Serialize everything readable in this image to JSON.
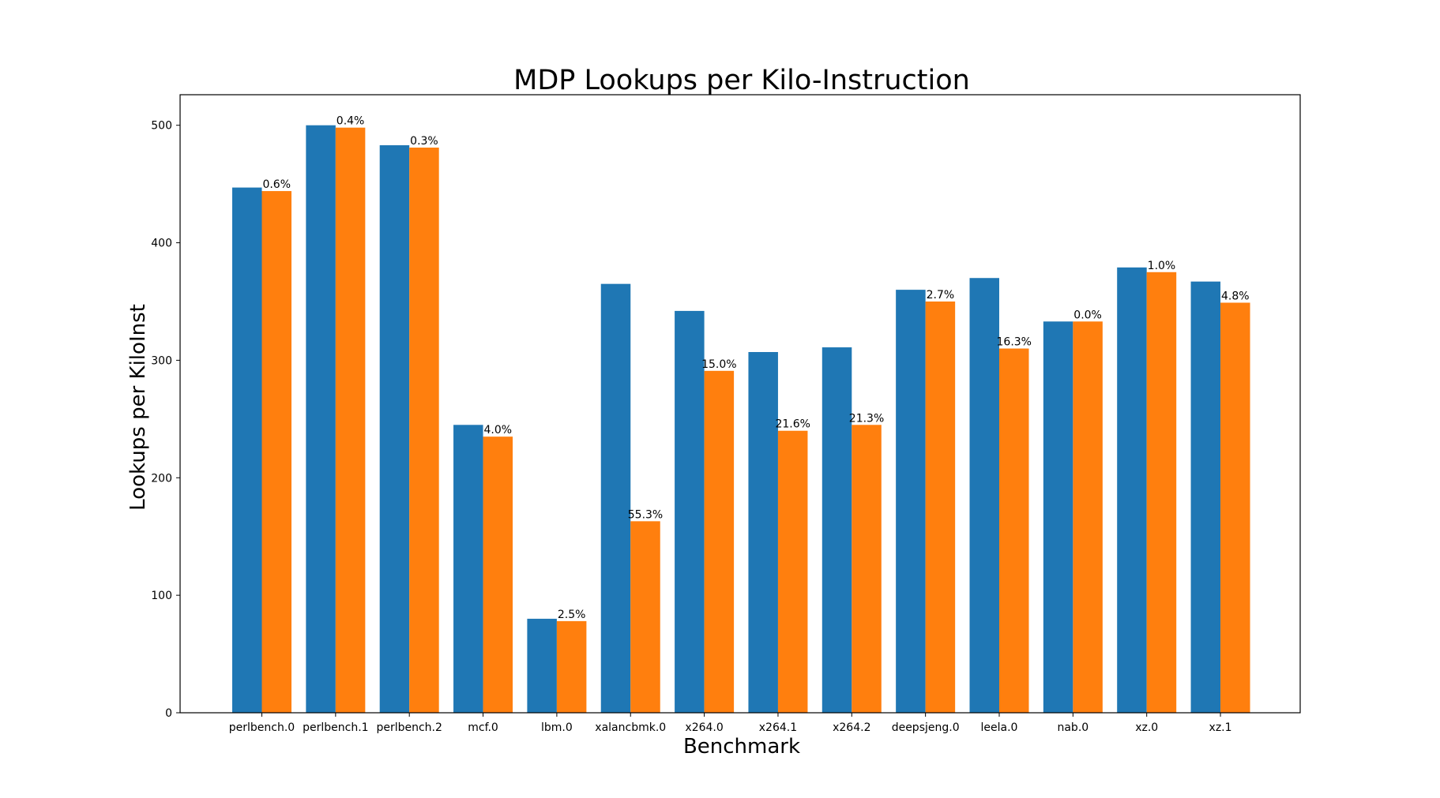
{
  "chart_data": {
    "type": "bar",
    "title": "MDP Lookups per Kilo-Instruction",
    "xlabel": "Benchmark",
    "ylabel": "Lookups per KiloInst",
    "ylim": [
      0,
      526
    ],
    "yticks": [
      0,
      100,
      200,
      300,
      400,
      500
    ],
    "grid": false,
    "legend": "none",
    "categories": [
      "perlbench.0",
      "perlbench.1",
      "perlbench.2",
      "mcf.0",
      "lbm.0",
      "xalancbmk.0",
      "x264.0",
      "x264.1",
      "x264.2",
      "deepsjeng.0",
      "leela.0",
      "nab.0",
      "xz.0",
      "xz.1"
    ],
    "series": [
      {
        "color": "#1f77b4",
        "values": [
          447,
          500,
          483,
          245,
          80,
          365,
          342,
          307,
          311,
          360,
          370,
          333,
          379,
          367
        ]
      },
      {
        "color": "#ff7f0e",
        "values": [
          444,
          498,
          481,
          235,
          78,
          163,
          291,
          240,
          245,
          350,
          310,
          333,
          375,
          349
        ]
      }
    ],
    "annotations": [
      "0.6%",
      "0.4%",
      "0.3%",
      "4.0%",
      "2.5%",
      "55.3%",
      "15.0%",
      "21.6%",
      "21.3%",
      "2.7%",
      "16.3%",
      "0.0%",
      "1.0%",
      "4.8%"
    ]
  }
}
